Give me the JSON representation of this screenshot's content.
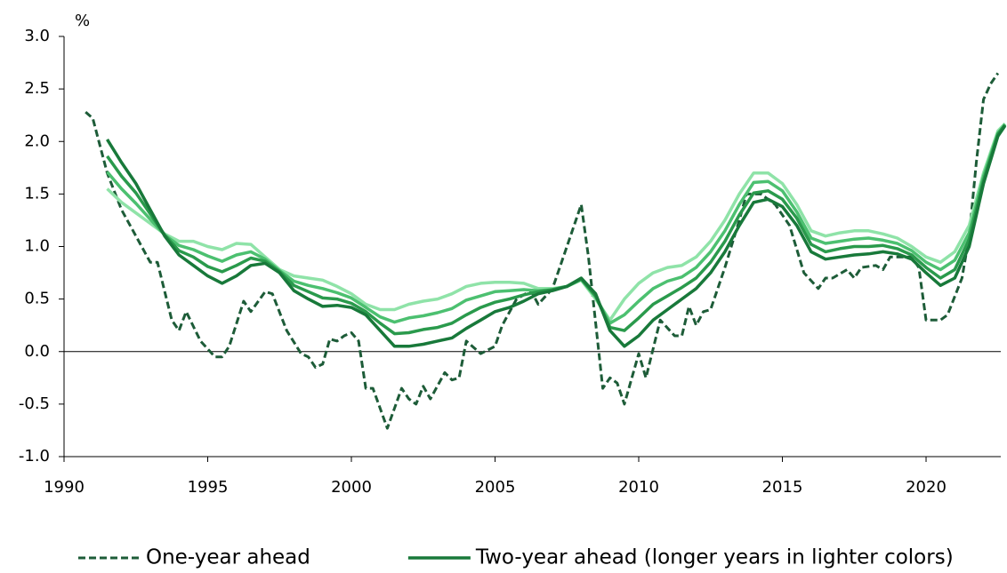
{
  "chart_data": {
    "type": "line",
    "y_unit": "%",
    "xlim": [
      1990,
      2022.6
    ],
    "xticks": [
      1990,
      1995,
      2000,
      2005,
      2010,
      2015,
      2020
    ],
    "ylim": [
      -1,
      3
    ],
    "yticks": [
      {
        "value": -1,
        "label": "-1.0"
      },
      -0.5,
      {
        "value": 0,
        "label": "0.0"
      },
      0.5,
      {
        "value": 1,
        "label": "1.0"
      },
      1.5,
      {
        "value": 2,
        "label": "2.0"
      },
      2.5,
      {
        "value": 3,
        "label": "3.0"
      }
    ],
    "zero_line": true,
    "series": [
      {
        "name": "One-year ahead",
        "color": "#1d5c38",
        "style": "dashed",
        "x": [
          1990.75,
          1991,
          1991.5,
          1992,
          1992.5,
          1993,
          1993.25,
          1993.75,
          1994,
          1994.25,
          1994.75,
          1995.25,
          1995.5,
          1995.75,
          1996.25,
          1996.5,
          1997,
          1997.25,
          1997.75,
          1998.25,
          1998.5,
          1998.75,
          1999,
          1999.25,
          1999.5,
          1999.75,
          2000,
          2000.25,
          2000.5,
          2000.75,
          2001.25,
          2001.75,
          2002,
          2002.25,
          2002.5,
          2002.75,
          2003.25,
          2003.5,
          2003.75,
          2004,
          2004.5,
          2005,
          2005.25,
          2005.75,
          2006.25,
          2006.5,
          2007,
          2007.5,
          2008,
          2008.25,
          2008.75,
          2009,
          2009.25,
          2009.5,
          2010,
          2010.25,
          2010.75,
          2011.25,
          2011.5,
          2011.75,
          2012,
          2012.25,
          2012.5,
          2013,
          2013.5,
          2013.75,
          2014.25,
          2014.75,
          2015.25,
          2015.75,
          2016.25,
          2016.5,
          2016.75,
          2017.25,
          2017.5,
          2017.75,
          2018.25,
          2018.5,
          2018.75,
          2019.5,
          2019.75,
          2020,
          2020.5,
          2020.75,
          2021.25,
          2021.5,
          2021.75,
          2022,
          2022.25,
          2022.5
        ],
        "values": [
          2.28,
          2.22,
          1.7,
          1.35,
          1.1,
          0.85,
          0.85,
          0.3,
          0.2,
          0.38,
          0.1,
          -0.05,
          -0.05,
          0.05,
          0.48,
          0.38,
          0.57,
          0.55,
          0.2,
          -0.02,
          -0.05,
          -0.15,
          -0.12,
          0.12,
          0.1,
          0.15,
          0.18,
          0.1,
          -0.35,
          -0.35,
          -0.73,
          -0.35,
          -0.45,
          -0.5,
          -0.33,
          -0.45,
          -0.2,
          -0.27,
          -0.25,
          0.1,
          -0.02,
          0.05,
          0.25,
          0.5,
          0.58,
          0.45,
          0.6,
          1.0,
          1.4,
          0.9,
          -0.35,
          -0.25,
          -0.3,
          -0.5,
          -0.02,
          -0.25,
          0.3,
          0.15,
          0.15,
          0.43,
          0.25,
          0.38,
          0.4,
          0.8,
          1.25,
          1.5,
          1.5,
          1.4,
          1.2,
          0.75,
          0.6,
          0.7,
          0.7,
          0.78,
          0.7,
          0.8,
          0.82,
          0.78,
          0.9,
          0.9,
          0.8,
          0.3,
          0.3,
          0.35,
          0.7,
          1.1,
          1.8,
          2.4,
          2.55,
          2.65
        ]
      },
      {
        "color": "#8fe3a8",
        "x": [
          1991.5,
          1992,
          1992.5,
          1993,
          1993.5,
          1994,
          1994.5,
          1995,
          1995.5,
          1996,
          1996.5,
          1997,
          1997.5,
          1998,
          1998.5,
          1999,
          1999.5,
          2000,
          2000.5,
          2001,
          2001.5,
          2002,
          2002.5,
          2003,
          2003.5,
          2004,
          2004.5,
          2005,
          2005.5,
          2006,
          2006.5,
          2007,
          2007.5,
          2008,
          2008.5,
          2009,
          2009.5,
          2010,
          2010.5,
          2011,
          2011.5,
          2012,
          2012.5,
          2013,
          2013.5,
          2014,
          2014.5,
          2015,
          2015.5,
          2016,
          2016.5,
          2017,
          2017.5,
          2018,
          2018.5,
          2019,
          2019.5,
          2020,
          2020.5,
          2021,
          2021.5,
          2022,
          2022.5,
          2022.75
        ],
        "values": [
          1.55,
          1.42,
          1.32,
          1.22,
          1.12,
          1.05,
          1.05,
          1.0,
          0.97,
          1.03,
          1.02,
          0.9,
          0.78,
          0.72,
          0.7,
          0.68,
          0.62,
          0.55,
          0.45,
          0.4,
          0.4,
          0.45,
          0.48,
          0.5,
          0.55,
          0.62,
          0.65,
          0.66,
          0.66,
          0.65,
          0.6,
          0.6,
          0.62,
          0.68,
          0.5,
          0.3,
          0.5,
          0.65,
          0.75,
          0.8,
          0.82,
          0.9,
          1.05,
          1.25,
          1.5,
          1.7,
          1.7,
          1.6,
          1.4,
          1.15,
          1.1,
          1.13,
          1.15,
          1.15,
          1.12,
          1.08,
          1.0,
          0.9,
          0.85,
          0.95,
          1.2,
          1.7,
          2.1,
          2.17
        ]
      },
      {
        "color": "#4cc070",
        "x": [
          1991.5,
          1992,
          1992.5,
          1993,
          1993.5,
          1994,
          1994.5,
          1995,
          1995.5,
          1996,
          1996.5,
          1997,
          1997.5,
          1998,
          1998.5,
          1999,
          1999.5,
          2000,
          2000.5,
          2001,
          2001.5,
          2002,
          2002.5,
          2003,
          2003.5,
          2004,
          2004.5,
          2005,
          2005.5,
          2006,
          2006.5,
          2007,
          2007.5,
          2008,
          2008.5,
          2009,
          2009.5,
          2010,
          2010.5,
          2011,
          2011.5,
          2012,
          2012.5,
          2013,
          2013.5,
          2014,
          2014.5,
          2015,
          2015.5,
          2016,
          2016.5,
          2017,
          2017.5,
          2018,
          2018.5,
          2019,
          2019.5,
          2020,
          2020.5,
          2021,
          2021.5,
          2022,
          2022.5,
          2022.75
        ],
        "values": [
          1.71,
          1.55,
          1.41,
          1.26,
          1.11,
          1.01,
          0.97,
          0.91,
          0.86,
          0.92,
          0.95,
          0.88,
          0.77,
          0.67,
          0.63,
          0.6,
          0.56,
          0.51,
          0.42,
          0.33,
          0.28,
          0.32,
          0.34,
          0.37,
          0.41,
          0.49,
          0.53,
          0.57,
          0.58,
          0.59,
          0.58,
          0.59,
          0.62,
          0.69,
          0.52,
          0.27,
          0.35,
          0.48,
          0.6,
          0.67,
          0.71,
          0.8,
          0.95,
          1.15,
          1.4,
          1.61,
          1.62,
          1.53,
          1.33,
          1.08,
          1.03,
          1.05,
          1.07,
          1.08,
          1.06,
          1.03,
          0.96,
          0.85,
          0.78,
          0.87,
          1.13,
          1.67,
          2.08,
          2.16
        ]
      },
      {
        "color": "#2a9a4c",
        "x": [
          1991.5,
          1992,
          1992.5,
          1993,
          1993.5,
          1994,
          1994.5,
          1995,
          1995.5,
          1996,
          1996.5,
          1997,
          1997.5,
          1998,
          1998.5,
          1999,
          1999.5,
          2000,
          2000.5,
          2001,
          2001.5,
          2002,
          2002.5,
          2003,
          2003.5,
          2004,
          2004.5,
          2005,
          2005.5,
          2006,
          2006.5,
          2007,
          2007.5,
          2008,
          2008.5,
          2009,
          2009.5,
          2010,
          2010.5,
          2011,
          2011.5,
          2012,
          2012.5,
          2013,
          2013.5,
          2014,
          2014.5,
          2015,
          2015.5,
          2016,
          2016.5,
          2017,
          2017.5,
          2018,
          2018.5,
          2019,
          2019.5,
          2020,
          2020.5,
          2021,
          2021.5,
          2022,
          2022.5,
          2022.75
        ],
        "values": [
          1.86,
          1.67,
          1.51,
          1.31,
          1.11,
          0.96,
          0.9,
          0.81,
          0.76,
          0.82,
          0.89,
          0.86,
          0.76,
          0.63,
          0.57,
          0.51,
          0.5,
          0.46,
          0.38,
          0.27,
          0.17,
          0.18,
          0.21,
          0.23,
          0.27,
          0.35,
          0.42,
          0.47,
          0.5,
          0.54,
          0.57,
          0.59,
          0.62,
          0.69,
          0.53,
          0.23,
          0.2,
          0.32,
          0.45,
          0.53,
          0.61,
          0.7,
          0.85,
          1.05,
          1.3,
          1.51,
          1.53,
          1.45,
          1.27,
          1.02,
          0.95,
          0.98,
          1.0,
          1.0,
          1.01,
          0.98,
          0.92,
          0.8,
          0.7,
          0.78,
          1.07,
          1.63,
          2.07,
          2.16
        ]
      },
      {
        "name": "Two-year ahead (longer years in lighter colors)",
        "color": "#18793a",
        "x": [
          1991.5,
          1992,
          1992.5,
          1993,
          1993.5,
          1994,
          1994.5,
          1995,
          1995.5,
          1996,
          1996.5,
          1997,
          1997.5,
          1998,
          1998.5,
          1999,
          1999.5,
          2000,
          2000.5,
          2001,
          2001.5,
          2002,
          2002.5,
          2003,
          2003.5,
          2004,
          2004.5,
          2005,
          2005.5,
          2006,
          2006.5,
          2007,
          2007.5,
          2008,
          2008.5,
          2009,
          2009.5,
          2010,
          2010.5,
          2011,
          2011.5,
          2012,
          2012.5,
          2013,
          2013.5,
          2014,
          2014.5,
          2015,
          2015.5,
          2016,
          2016.5,
          2017,
          2017.5,
          2018,
          2018.5,
          2019,
          2019.5,
          2020,
          2020.5,
          2021,
          2021.5,
          2022,
          2022.5,
          2022.75
        ],
        "values": [
          2.02,
          1.8,
          1.6,
          1.35,
          1.1,
          0.92,
          0.82,
          0.72,
          0.65,
          0.72,
          0.82,
          0.84,
          0.75,
          0.58,
          0.5,
          0.43,
          0.44,
          0.42,
          0.35,
          0.2,
          0.05,
          0.05,
          0.07,
          0.1,
          0.13,
          0.22,
          0.3,
          0.38,
          0.42,
          0.48,
          0.55,
          0.58,
          0.62,
          0.7,
          0.55,
          0.2,
          0.05,
          0.15,
          0.3,
          0.4,
          0.5,
          0.6,
          0.75,
          0.95,
          1.2,
          1.42,
          1.45,
          1.38,
          1.2,
          0.95,
          0.88,
          0.9,
          0.92,
          0.93,
          0.95,
          0.93,
          0.88,
          0.75,
          0.63,
          0.7,
          1.0,
          1.6,
          2.05,
          2.15
        ]
      }
    ]
  }
}
